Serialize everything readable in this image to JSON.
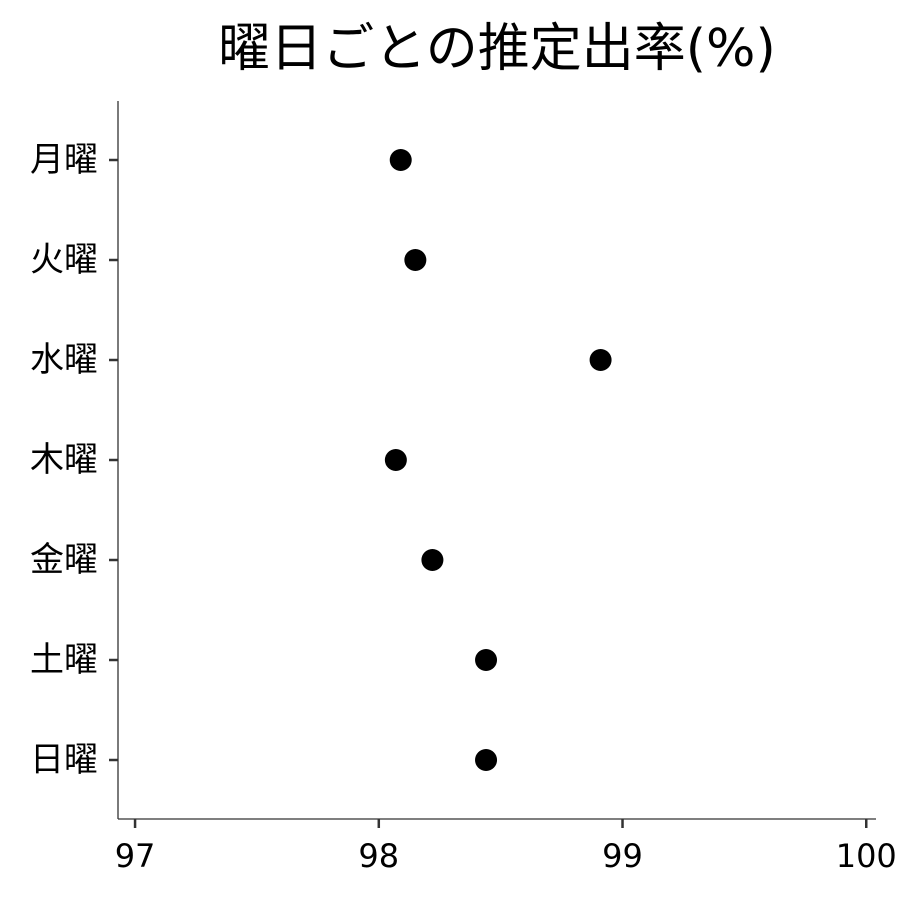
{
  "chart_data": {
    "type": "scatter",
    "title": "曜日ごとの推定出率(%)",
    "xlabel": "",
    "ylabel": "",
    "categories": [
      "月曜",
      "火曜",
      "水曜",
      "木曜",
      "金曜",
      "土曜",
      "日曜"
    ],
    "values": [
      98.09,
      98.15,
      98.91,
      98.07,
      98.22,
      98.44,
      98.44
    ],
    "x_ticks": [
      97,
      98,
      99,
      100
    ],
    "xlim": [
      96.93,
      100.04
    ],
    "grid": false,
    "legend": "none",
    "point_color": "#000000"
  }
}
